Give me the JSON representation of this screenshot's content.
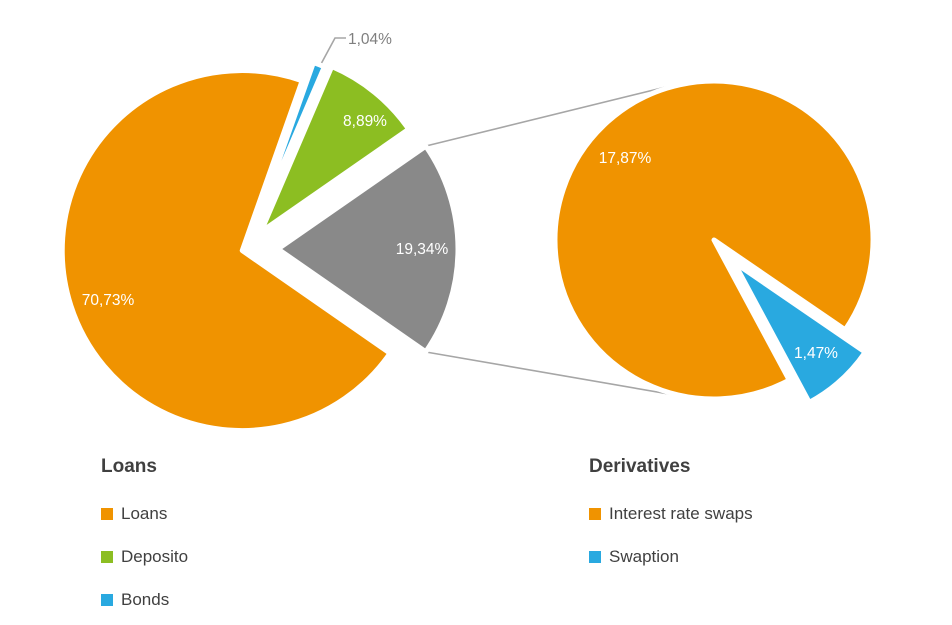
{
  "palette": {
    "orange": "#F09300",
    "green": "#8CBE22",
    "blue": "#29A9E0",
    "gray": "#898989",
    "connector_line": "#A6A6A6",
    "outside_label": "#7F7F7F",
    "legend_text": "#404040",
    "background": "#FFFFFF"
  },
  "chart_data": [
    {
      "type": "pie",
      "title": "Loans",
      "legend_position": "bottom-left",
      "slices": [
        {
          "name": "loans",
          "legend_label": "Loans",
          "data_label": "70,73%",
          "value": 70.73,
          "color": "#F09300"
        },
        {
          "name": "deposito",
          "legend_label": "Deposito",
          "data_label": "8,89%",
          "value": 8.89,
          "color": "#8CBE22"
        },
        {
          "name": "bonds",
          "legend_label": "Bonds",
          "data_label": "1,04%",
          "value": 1.04,
          "color": "#29A9E0"
        },
        {
          "name": "derivatives-group",
          "data_label": "19,34%",
          "value": 19.34,
          "color": "#898989"
        }
      ]
    },
    {
      "type": "pie",
      "title": "Derivatives",
      "legend_position": "bottom-right",
      "slices": [
        {
          "name": "interest-rate-swaps",
          "legend_label": "Interest rate swaps",
          "data_label": "17,87%",
          "value": 17.87,
          "color": "#F09300"
        },
        {
          "name": "swaption",
          "legend_label": "Swaption",
          "data_label": "1,47%",
          "value": 1.47,
          "color": "#29A9E0"
        }
      ]
    }
  ],
  "legends": {
    "left": {
      "title": "Loans",
      "items": [
        {
          "label": "Loans",
          "color": "#F09300"
        },
        {
          "label": "Deposito",
          "color": "#8CBE22"
        },
        {
          "label": "Bonds",
          "color": "#29A9E0"
        }
      ]
    },
    "right": {
      "title": "Derivatives",
      "items": [
        {
          "label": "Interest rate swaps",
          "color": "#F09300"
        },
        {
          "label": "Swaption",
          "color": "#29A9E0"
        }
      ]
    }
  }
}
